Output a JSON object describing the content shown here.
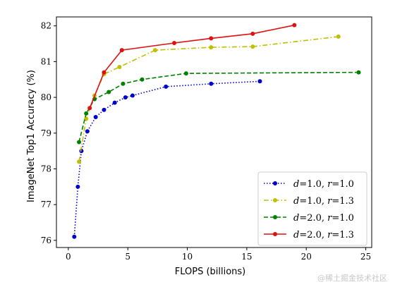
{
  "chart_data": {
    "type": "line",
    "xlabel": "FLOPS (billions)",
    "ylabel": "ImageNet Top1 Accuracy (%)",
    "xlim": [
      -1,
      25.5
    ],
    "ylim": [
      75.8,
      82.25
    ],
    "xticks": [
      0,
      5,
      10,
      15,
      20,
      25
    ],
    "yticks": [
      76,
      77,
      78,
      79,
      80,
      81,
      82
    ],
    "grid": false,
    "legend_position": "lower-right",
    "series": [
      {
        "name": "d=1.0, r=1.0",
        "legend": {
          "d": "1.0",
          "r": "1.0"
        },
        "color": "#0000cc",
        "dash": "dotted",
        "x": [
          0.5,
          0.8,
          1.1,
          1.6,
          2.3,
          3.0,
          3.9,
          4.8,
          5.4,
          8.2,
          12.0,
          16.1
        ],
        "y": [
          76.1,
          77.5,
          78.5,
          79.05,
          79.45,
          79.65,
          79.85,
          80.0,
          80.05,
          80.3,
          80.38,
          80.45
        ]
      },
      {
        "name": "d=1.0, r=1.3",
        "legend": {
          "d": "1.0",
          "r": "1.3"
        },
        "color": "#bfbf00",
        "dash": "dashdot",
        "x": [
          0.9,
          1.5,
          2.2,
          3.0,
          4.3,
          7.3,
          12.0,
          15.5,
          22.7
        ],
        "y": [
          78.2,
          79.4,
          80.05,
          80.65,
          80.85,
          81.32,
          81.4,
          81.42,
          81.7
        ]
      },
      {
        "name": "d=2.0, r=1.0",
        "legend": {
          "d": "2.0",
          "r": "1.0"
        },
        "color": "#008000",
        "dash": "dashed",
        "x": [
          0.9,
          1.5,
          2.2,
          3.4,
          4.6,
          6.2,
          9.9,
          24.4
        ],
        "y": [
          78.75,
          79.55,
          79.95,
          80.15,
          80.38,
          80.5,
          80.67,
          80.7
        ]
      },
      {
        "name": "d=2.0, r=1.3",
        "legend": {
          "d": "2.0",
          "r": "1.3"
        },
        "color": "#dd1111",
        "dash": "solid",
        "x": [
          1.8,
          3.0,
          4.5,
          8.9,
          12.0,
          15.5,
          19.0
        ],
        "y": [
          79.7,
          80.7,
          81.32,
          81.52,
          81.65,
          81.78,
          82.02
        ]
      }
    ]
  },
  "watermark": "@稀土掘金技术社区"
}
